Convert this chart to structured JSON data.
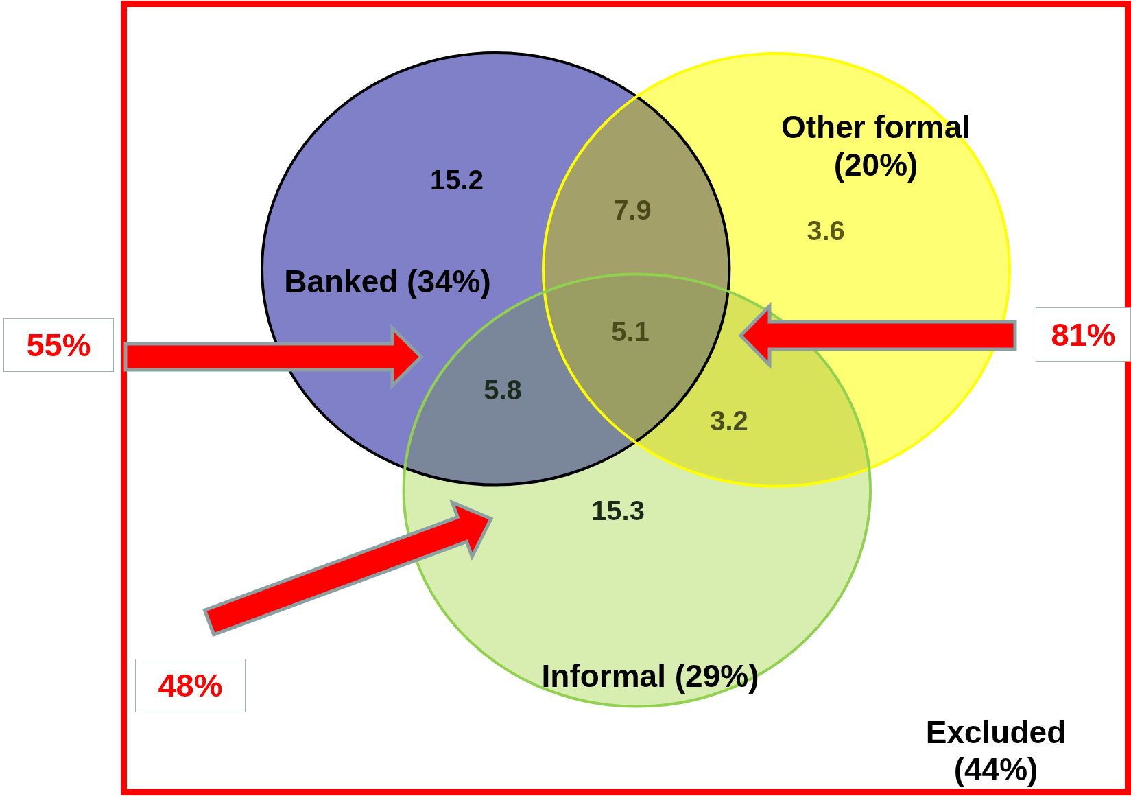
{
  "chart_data": {
    "type": "other",
    "categories": [
      null,
      null,
      null,
      null,
      null,
      null,
      null
    ],
    "values": [
      15.2,
      7.9,
      3.6,
      5.1,
      5.8,
      3.2,
      15.3
    ],
    "colors": [
      "#8080c8",
      "#a3a06a",
      "#ffff73",
      "#9a9e62",
      "#7a869a",
      "#d9e35a",
      "#d8eeb0"
    ],
    "data_labels": true,
    "annotations": [
      "Banked (34%)",
      "Other formal (20%)",
      "Informal (29%)",
      "Excluded (44%)",
      "55%",
      "81%",
      "48%"
    ]
  }
}
